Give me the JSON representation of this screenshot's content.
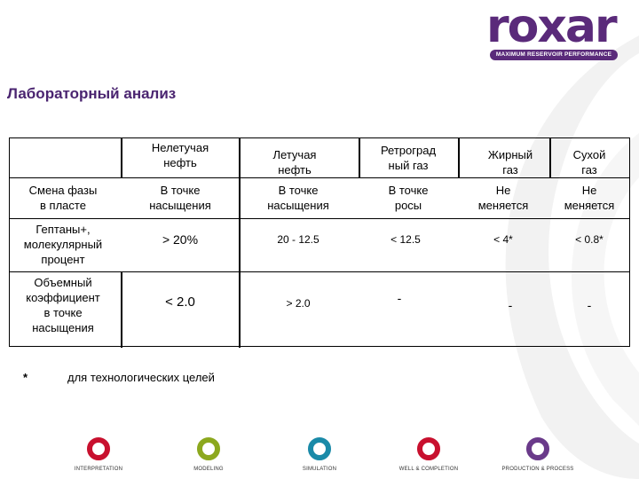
{
  "logo": {
    "wordmark": "roxar",
    "tagline": "MAXIMUM RESERVOIR PERFORMANCE"
  },
  "title": "Лабораторный анализ",
  "table": {
    "headers": [
      "Нелетучая\nнефть",
      "Летучая\nнефть",
      "Ретроград\nный газ",
      "Жирный\nгаз",
      "Сухой\nгаз"
    ],
    "rows": [
      {
        "label": "Смена фазы\nв пласте",
        "values": [
          "В точке\nнасыщения",
          "В точке\nнасыщения",
          "В точке\nросы",
          "Не\nменяется",
          "Не\nменяется"
        ]
      },
      {
        "label": "Гептаны+,\nмолекулярный\nпроцент",
        "values": [
          "> 20%",
          "20 - 12.5",
          "< 12.5",
          "< 4*",
          "< 0.8*"
        ]
      },
      {
        "label": "Объемный\nкоэффициент\nв точке\nнасыщения",
        "values": [
          "< 2.0",
          "> 2.0",
          "-",
          "-",
          "-"
        ]
      }
    ]
  },
  "footnote": {
    "marker": "*",
    "text": "для технологических целей"
  },
  "footer": {
    "items": [
      {
        "label": "INTERPRETATION",
        "color": "#c8102e"
      },
      {
        "label": "MODELING",
        "color": "#8ca81e"
      },
      {
        "label": "SIMULATION",
        "color": "#1a8aa8"
      },
      {
        "label": "WELL & COMPLETION",
        "color": "#c8102e"
      },
      {
        "label": "PRODUCTION & PROCESS",
        "color": "#6a3a8a"
      }
    ]
  }
}
